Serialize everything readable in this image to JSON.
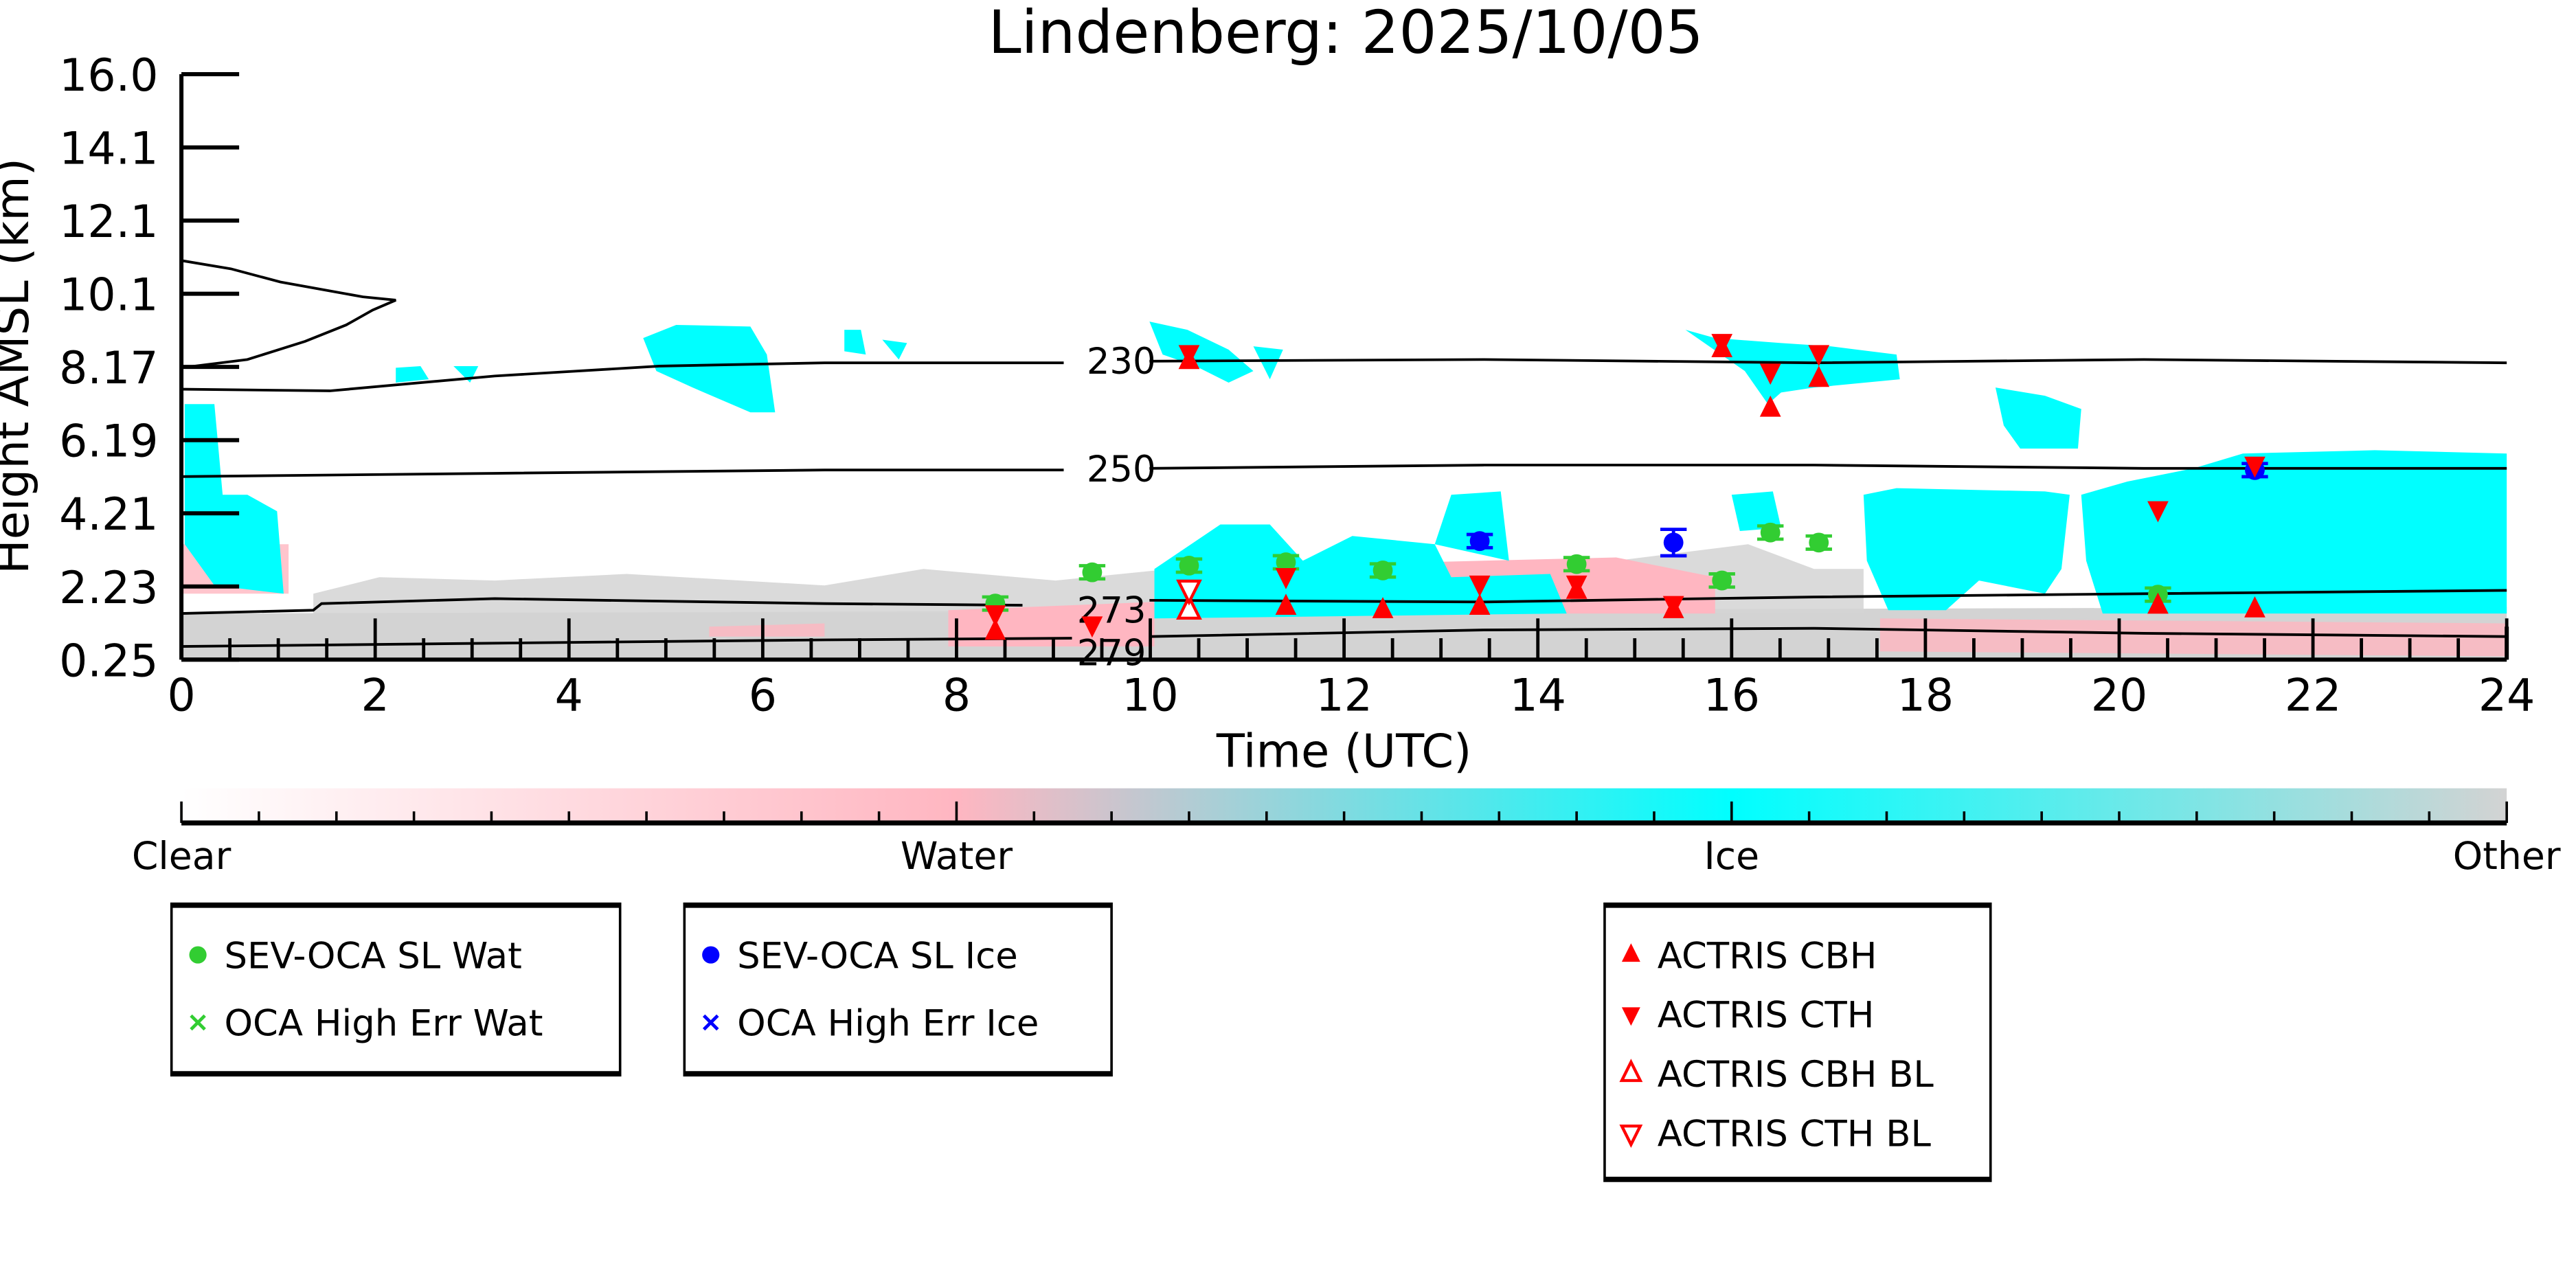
{
  "chart_data": {
    "type": "scatter",
    "title": "Lindenberg: 2025/10/05",
    "xlabel": "Time (UTC)",
    "ylabel": "Height AMSL (km)",
    "xlim": [
      0,
      24
    ],
    "ylim": [
      0.25,
      16.0
    ],
    "x_ticks": [
      "0",
      "2",
      "4",
      "6",
      "8",
      "10",
      "12",
      "14",
      "16",
      "18",
      "20",
      "22",
      "24"
    ],
    "y_ticks": [
      "0.25",
      "2.23",
      "4.21",
      "6.19",
      "8.17",
      "10.1",
      "12.1",
      "14.1",
      "16.0"
    ],
    "contours": [
      {
        "label": "230",
        "label_x": 9.7,
        "label_y": 8.3
      },
      {
        "label": "250",
        "label_x": 9.7,
        "label_y": 5.4
      },
      {
        "label": "273",
        "label_x": 9.6,
        "label_y": 1.6
      },
      {
        "label": "279",
        "label_x": 9.6,
        "label_y": 0.45
      }
    ],
    "colorbar": {
      "labels": [
        "Clear",
        "Water",
        "Ice",
        "Other"
      ],
      "colors": [
        "#ffffff",
        "#ffb6c1",
        "#00ffff",
        "#d3d3d3"
      ]
    },
    "series": [
      {
        "name": "SEV-OCA SL Wat",
        "marker": "circle",
        "color": "#32cd32",
        "points": [
          [
            8.4,
            1.76
          ],
          [
            9.4,
            2.6
          ],
          [
            10.4,
            2.78
          ],
          [
            11.4,
            2.87
          ],
          [
            12.4,
            2.65
          ],
          [
            14.4,
            2.82
          ],
          [
            15.9,
            2.38
          ],
          [
            16.4,
            3.67
          ],
          [
            16.9,
            3.4
          ],
          [
            20.4,
            2.0
          ]
        ]
      },
      {
        "name": "OCA High Err Wat",
        "marker": "x",
        "color": "#32cd32",
        "points": []
      },
      {
        "name": "SEV-OCA SL Ice",
        "marker": "circle",
        "color": "#0000ff",
        "points": [
          [
            13.4,
            3.44
          ],
          [
            15.4,
            3.4
          ],
          [
            21.4,
            5.35
          ]
        ]
      },
      {
        "name": "OCA High Err Ice",
        "marker": "x",
        "color": "#0000ff",
        "points": []
      },
      {
        "name": "ACTRIS CBH",
        "marker": "triangle-up",
        "color": "#ff0000",
        "points": [
          [
            8.4,
            1.0
          ],
          [
            10.4,
            8.28
          ],
          [
            11.4,
            1.67
          ],
          [
            12.4,
            1.58
          ],
          [
            13.4,
            1.67
          ],
          [
            14.4,
            2.1
          ],
          [
            15.4,
            1.58
          ],
          [
            15.9,
            8.6
          ],
          [
            16.4,
            7.0
          ],
          [
            16.9,
            7.8
          ],
          [
            20.4,
            1.7
          ],
          [
            21.4,
            1.6
          ]
        ]
      },
      {
        "name": "ACTRIS CTH",
        "marker": "triangle-down",
        "color": "#ff0000",
        "points": [
          [
            8.4,
            1.5
          ],
          [
            9.4,
            1.2
          ],
          [
            10.4,
            8.5
          ],
          [
            11.4,
            2.5
          ],
          [
            13.4,
            2.3
          ],
          [
            14.4,
            2.3
          ],
          [
            15.4,
            1.75
          ],
          [
            15.9,
            8.8
          ],
          [
            16.4,
            8.0
          ],
          [
            16.9,
            8.5
          ],
          [
            20.4,
            4.3
          ],
          [
            21.4,
            5.5
          ]
        ]
      },
      {
        "name": "ACTRIS CBH BL",
        "marker": "triangle-up-open",
        "color": "#ff0000",
        "points": [
          [
            10.4,
            1.58
          ]
        ]
      },
      {
        "name": "ACTRIS CTH BL",
        "marker": "triangle-down-open",
        "color": "#ff0000",
        "points": [
          [
            10.4,
            2.15
          ]
        ]
      }
    ],
    "legend_groups": [
      {
        "entries": [
          "SEV-OCA SL Wat",
          "OCA High Err Wat"
        ]
      },
      {
        "entries": [
          "SEV-OCA SL Ice",
          "OCA High Err Ice"
        ]
      },
      {
        "entries": [
          "ACTRIS CBH",
          "ACTRIS CTH",
          "ACTRIS CBH BL",
          "ACTRIS CTH BL"
        ]
      }
    ]
  }
}
